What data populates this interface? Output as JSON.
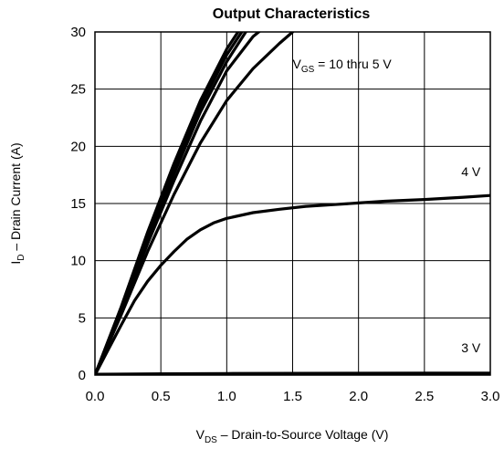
{
  "chart_data": {
    "type": "line",
    "title": "Output Characteristics",
    "xlabel": {
      "main": "V",
      "sub": "DS",
      "rest": " –  Drain-to-Source Voltage (V)"
    },
    "ylabel": {
      "main": "I",
      "sub": "D",
      "rest": " –  Drain Current (A)"
    },
    "xlim": [
      0,
      3.0
    ],
    "ylim": [
      0,
      30
    ],
    "x_ticks": [
      "0.0",
      "0.5",
      "1.0",
      "1.5",
      "2.0",
      "2.5",
      "3.0"
    ],
    "y_ticks": [
      "0",
      "5",
      "10",
      "15",
      "20",
      "25",
      "30"
    ],
    "grid": true,
    "annotations": [
      {
        "main": "V",
        "sub": "GS",
        "rest": " = 10 thru 5 V",
        "x": 1.5,
        "y": 26.8
      },
      {
        "main": "4 V",
        "sub": "",
        "rest": "",
        "x": 2.78,
        "y": 17.4
      },
      {
        "main": "3 V",
        "sub": "",
        "rest": "",
        "x": 2.78,
        "y": 2.0
      }
    ],
    "series": [
      {
        "x": [
          0,
          0.2,
          0.4,
          0.6,
          0.8,
          1.0,
          1.2
        ],
        "y": [
          0,
          6,
          12.5,
          18.5,
          24,
          28.5,
          32
        ]
      },
      {
        "x": [
          0,
          0.2,
          0.4,
          0.6,
          0.8,
          1.0,
          1.2
        ],
        "y": [
          0,
          5.9,
          12.2,
          18.0,
          23.5,
          28.0,
          31.5
        ]
      },
      {
        "x": [
          0,
          0.2,
          0.4,
          0.6,
          0.8,
          1.0,
          1.2
        ],
        "y": [
          0,
          5.8,
          11.9,
          17.6,
          23.0,
          27.4,
          31.0
        ]
      },
      {
        "x": [
          0,
          0.2,
          0.4,
          0.6,
          0.8,
          1.0,
          1.2,
          1.35
        ],
        "y": [
          0,
          5.6,
          11.5,
          17.0,
          22.2,
          26.6,
          29.6,
          31.0
        ]
      },
      {
        "x": [
          0,
          0.2,
          0.4,
          0.6,
          0.8,
          1.0,
          1.2,
          1.4,
          1.5
        ],
        "y": [
          0,
          5.3,
          10.8,
          15.8,
          20.3,
          24.0,
          26.8,
          29.0,
          30.0
        ]
      },
      {
        "x": [
          0,
          0.1,
          0.2,
          0.3,
          0.4,
          0.5,
          0.6,
          0.7,
          0.8,
          0.9,
          1.0,
          1.2,
          1.4,
          1.6,
          1.8,
          2.0,
          2.2,
          2.5,
          2.8,
          3.0
        ],
        "y": [
          0,
          2.2,
          4.4,
          6.5,
          8.2,
          9.6,
          10.8,
          11.9,
          12.7,
          13.3,
          13.7,
          14.2,
          14.5,
          14.75,
          14.9,
          15.05,
          15.2,
          15.35,
          15.55,
          15.7
        ]
      },
      {
        "x": [
          0,
          0.5,
          1.0,
          1.5,
          2.0,
          2.5,
          3.0
        ],
        "y": [
          0,
          0.04,
          0.06,
          0.08,
          0.09,
          0.1,
          0.1
        ]
      }
    ]
  }
}
